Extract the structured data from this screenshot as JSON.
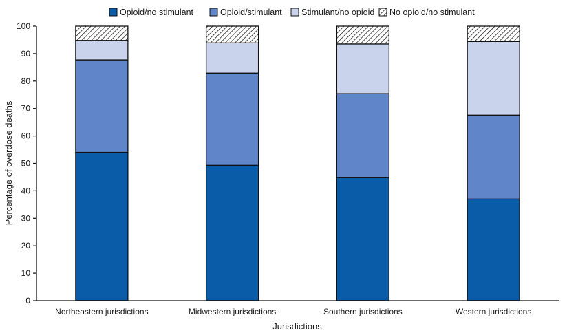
{
  "chart_data": {
    "type": "bar",
    "stacked": true,
    "categories": [
      "Northeastern jurisdictions",
      "Midwestern jurisdictions",
      "Southern jurisdictions",
      "Western jurisdictions"
    ],
    "series": [
      {
        "name": "Opioid/no stimulant",
        "values": [
          54.0,
          49.3,
          44.8,
          37.0
        ],
        "color": "#0a5ca8",
        "pattern": "solid"
      },
      {
        "name": "Opioid/stimulant",
        "values": [
          33.7,
          33.6,
          30.6,
          30.6
        ],
        "color": "#6185c9",
        "pattern": "solid"
      },
      {
        "name": "Stimulant/no opioid",
        "values": [
          7.1,
          11.0,
          18.1,
          26.8
        ],
        "color": "#c9d3ec",
        "pattern": "solid"
      },
      {
        "name": "No opioid/no stimulant",
        "values": [
          5.2,
          6.1,
          6.5,
          5.6
        ],
        "color": "#ffffff",
        "pattern": "hatched"
      }
    ],
    "xlabel": "Jurisdictions",
    "ylabel": "Percentage of overdose deaths",
    "ylim": [
      0,
      100
    ],
    "yticks": [
      0,
      10,
      20,
      30,
      40,
      50,
      60,
      70,
      80,
      90,
      100
    ],
    "grid": false,
    "legend_position": "top"
  }
}
